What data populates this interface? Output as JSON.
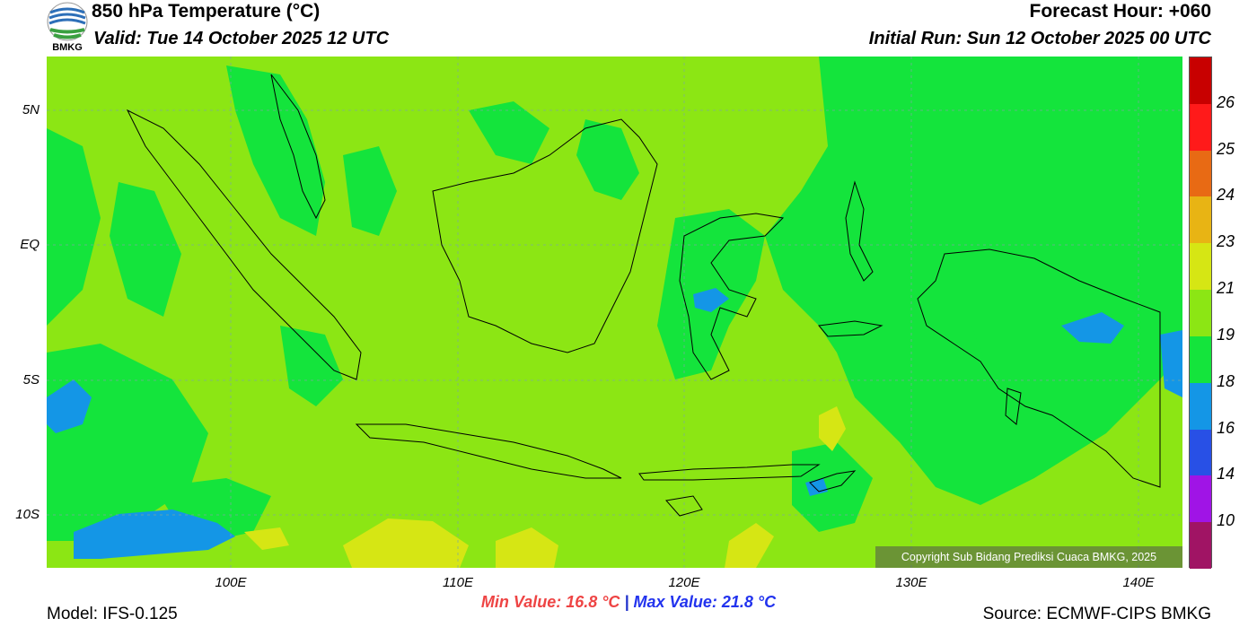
{
  "header": {
    "title": "850 hPa Temperature (°C)",
    "valid": "Valid: Tue 14 October 2025 12 UTC",
    "forecast_hour": "Forecast Hour: +060",
    "initial_run": "Initial Run: Sun 12 October 2025 00 UTC",
    "logo_text": "BMKG"
  },
  "map": {
    "lat_labels": [
      "5N",
      "EQ",
      "5S",
      "10S"
    ],
    "lon_labels": [
      "100E",
      "110E",
      "120E",
      "130E",
      "140E"
    ],
    "copyright": "Copyright Sub Bidang Prediksi Cuaca BMKG, 2025"
  },
  "colorbar": {
    "labels": [
      "26",
      "25",
      "24",
      "23",
      "21",
      "19",
      "18",
      "16",
      "14",
      "10"
    ],
    "colors": [
      "#c80000",
      "#ff1a1a",
      "#e86a14",
      "#e8b414",
      "#d6e614",
      "#8ce614",
      "#14e43c",
      "#1496e6",
      "#2850e6",
      "#a014e6",
      "#a01464"
    ]
  },
  "stats": {
    "min": "Min Value: 16.8 °C",
    "separator": "|",
    "max": "Max Value: 21.8 °C"
  },
  "footer": {
    "model": "Model: IFS-0.125",
    "source": "Source: ECMWF-CIPS BMKG"
  }
}
